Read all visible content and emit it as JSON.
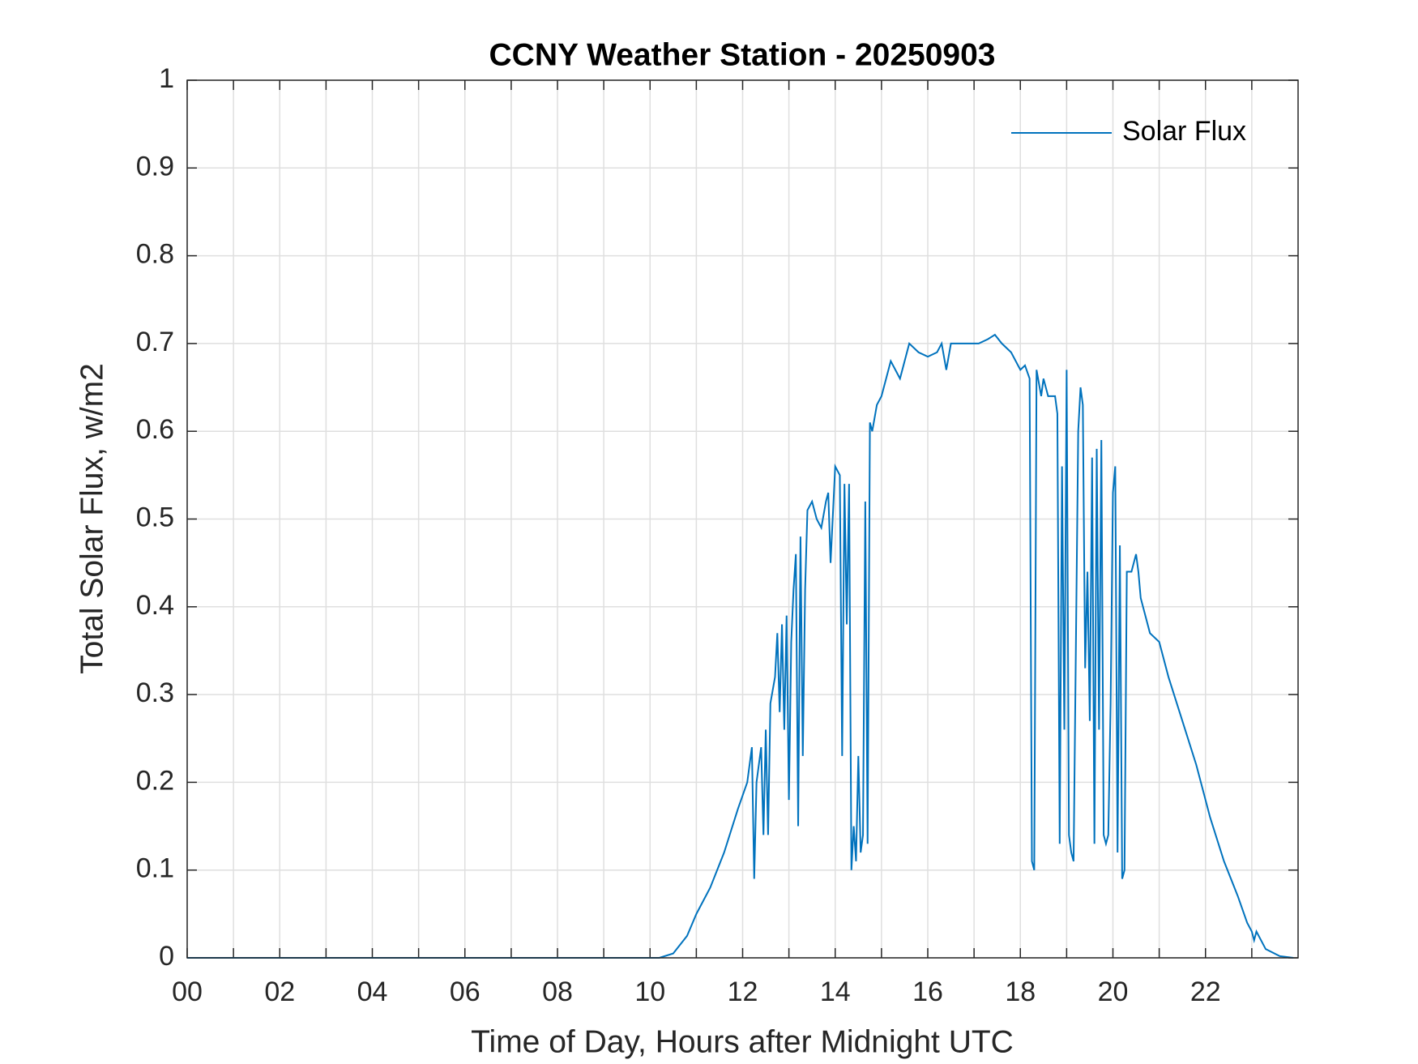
{
  "chart_data": {
    "type": "line",
    "title": "CCNY Weather Station - 20250903",
    "x_label": "Time of Day, Hours after Midnight UTC",
    "y_label": "Total Solar Flux, w/m2",
    "xlim": [
      0,
      24
    ],
    "ylim": [
      0,
      1
    ],
    "xticks": [
      {
        "value": 0,
        "label": "00"
      },
      {
        "value": 2,
        "label": "02"
      },
      {
        "value": 4,
        "label": "04"
      },
      {
        "value": 6,
        "label": "06"
      },
      {
        "value": 8,
        "label": "08"
      },
      10,
      12,
      14,
      16,
      18,
      20,
      22
    ],
    "xminor_ticks": [
      1,
      3,
      5,
      7,
      9,
      11,
      13,
      15,
      17,
      19,
      21,
      23
    ],
    "yticks": [
      0,
      0.1,
      0.2,
      0.3,
      0.4,
      0.5,
      0.6,
      0.7,
      0.8,
      0.9,
      1
    ],
    "grid": true,
    "legend": "upper right",
    "x": [
      0,
      10.2,
      10.5,
      10.8,
      11.0,
      11.3,
      11.6,
      11.9,
      12.1,
      12.2,
      12.25,
      12.3,
      12.4,
      12.45,
      12.5,
      12.55,
      12.6,
      12.7,
      12.75,
      12.8,
      12.85,
      12.9,
      12.95,
      13.0,
      13.05,
      13.1,
      13.15,
      13.2,
      13.25,
      13.3,
      13.35,
      13.4,
      13.5,
      13.6,
      13.7,
      13.8,
      13.85,
      13.9,
      14.0,
      14.1,
      14.15,
      14.2,
      14.25,
      14.3,
      14.35,
      14.4,
      14.45,
      14.5,
      14.55,
      14.6,
      14.65,
      14.7,
      14.75,
      14.8,
      14.9,
      15.0,
      15.1,
      15.2,
      15.3,
      15.4,
      15.5,
      15.6,
      15.8,
      16.0,
      16.2,
      16.3,
      16.4,
      16.5,
      16.7,
      16.9,
      17.1,
      17.3,
      17.45,
      17.6,
      17.8,
      18.0,
      18.1,
      18.2,
      18.25,
      18.3,
      18.35,
      18.45,
      18.5,
      18.6,
      18.75,
      18.8,
      18.85,
      18.9,
      18.95,
      19.0,
      19.05,
      19.1,
      19.15,
      19.25,
      19.3,
      19.35,
      19.4,
      19.45,
      19.5,
      19.55,
      19.6,
      19.65,
      19.7,
      19.75,
      19.8,
      19.85,
      19.9,
      19.95,
      20.0,
      20.05,
      20.1,
      20.15,
      20.2,
      20.25,
      20.3,
      20.4,
      20.5,
      20.55,
      20.6,
      20.8,
      21.0,
      21.2,
      21.5,
      21.8,
      22.1,
      22.4,
      22.7,
      22.9,
      23.0,
      23.05,
      23.1,
      23.3,
      23.6,
      23.9
    ],
    "series": [
      {
        "name": "Solar Flux",
        "color": "#0072bd",
        "values": [
          0,
          0,
          0.005,
          0.025,
          0.05,
          0.08,
          0.12,
          0.17,
          0.2,
          0.24,
          0.09,
          0.2,
          0.24,
          0.14,
          0.26,
          0.14,
          0.29,
          0.32,
          0.37,
          0.28,
          0.38,
          0.26,
          0.39,
          0.18,
          0.36,
          0.42,
          0.46,
          0.15,
          0.48,
          0.23,
          0.42,
          0.51,
          0.52,
          0.5,
          0.49,
          0.52,
          0.53,
          0.45,
          0.56,
          0.55,
          0.23,
          0.54,
          0.38,
          0.54,
          0.1,
          0.15,
          0.11,
          0.23,
          0.12,
          0.14,
          0.52,
          0.13,
          0.61,
          0.6,
          0.63,
          0.64,
          0.66,
          0.68,
          0.67,
          0.66,
          0.68,
          0.7,
          0.69,
          0.685,
          0.69,
          0.7,
          0.67,
          0.7,
          0.7,
          0.7,
          0.7,
          0.705,
          0.71,
          0.7,
          0.69,
          0.67,
          0.675,
          0.66,
          0.11,
          0.1,
          0.67,
          0.64,
          0.66,
          0.64,
          0.64,
          0.62,
          0.13,
          0.56,
          0.26,
          0.67,
          0.14,
          0.12,
          0.11,
          0.6,
          0.65,
          0.63,
          0.33,
          0.44,
          0.27,
          0.57,
          0.13,
          0.58,
          0.26,
          0.59,
          0.14,
          0.13,
          0.14,
          0.29,
          0.53,
          0.56,
          0.12,
          0.47,
          0.09,
          0.1,
          0.44,
          0.44,
          0.46,
          0.44,
          0.41,
          0.37,
          0.36,
          0.32,
          0.27,
          0.22,
          0.16,
          0.11,
          0.07,
          0.04,
          0.03,
          0.02,
          0.03,
          0.01,
          0.002,
          0
        ]
      }
    ]
  }
}
